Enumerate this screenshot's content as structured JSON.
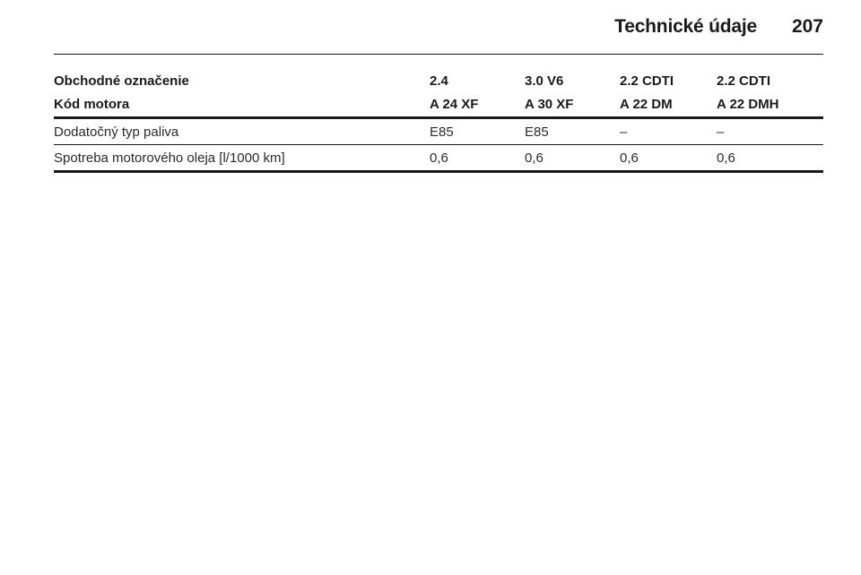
{
  "header": {
    "section_title": "Technické údaje",
    "page_number": "207"
  },
  "table": {
    "header_rows": [
      {
        "label": "Obchodné označenie",
        "values": [
          "2.4",
          "3.0 V6",
          "2.2 CDTI",
          "2.2 CDTI"
        ]
      },
      {
        "label": "Kód motora",
        "values": [
          "A 24 XF",
          "A 30 XF",
          "A 22 DM",
          "A 22 DMH"
        ]
      }
    ],
    "rows": [
      {
        "label": "Dodatočný typ paliva",
        "values": [
          "E85",
          "E85",
          "–",
          "–"
        ]
      },
      {
        "label": "Spotreba motorového oleja [l/1000 km]",
        "values": [
          "0,6",
          "0,6",
          "0,6",
          "0,6"
        ]
      }
    ]
  }
}
